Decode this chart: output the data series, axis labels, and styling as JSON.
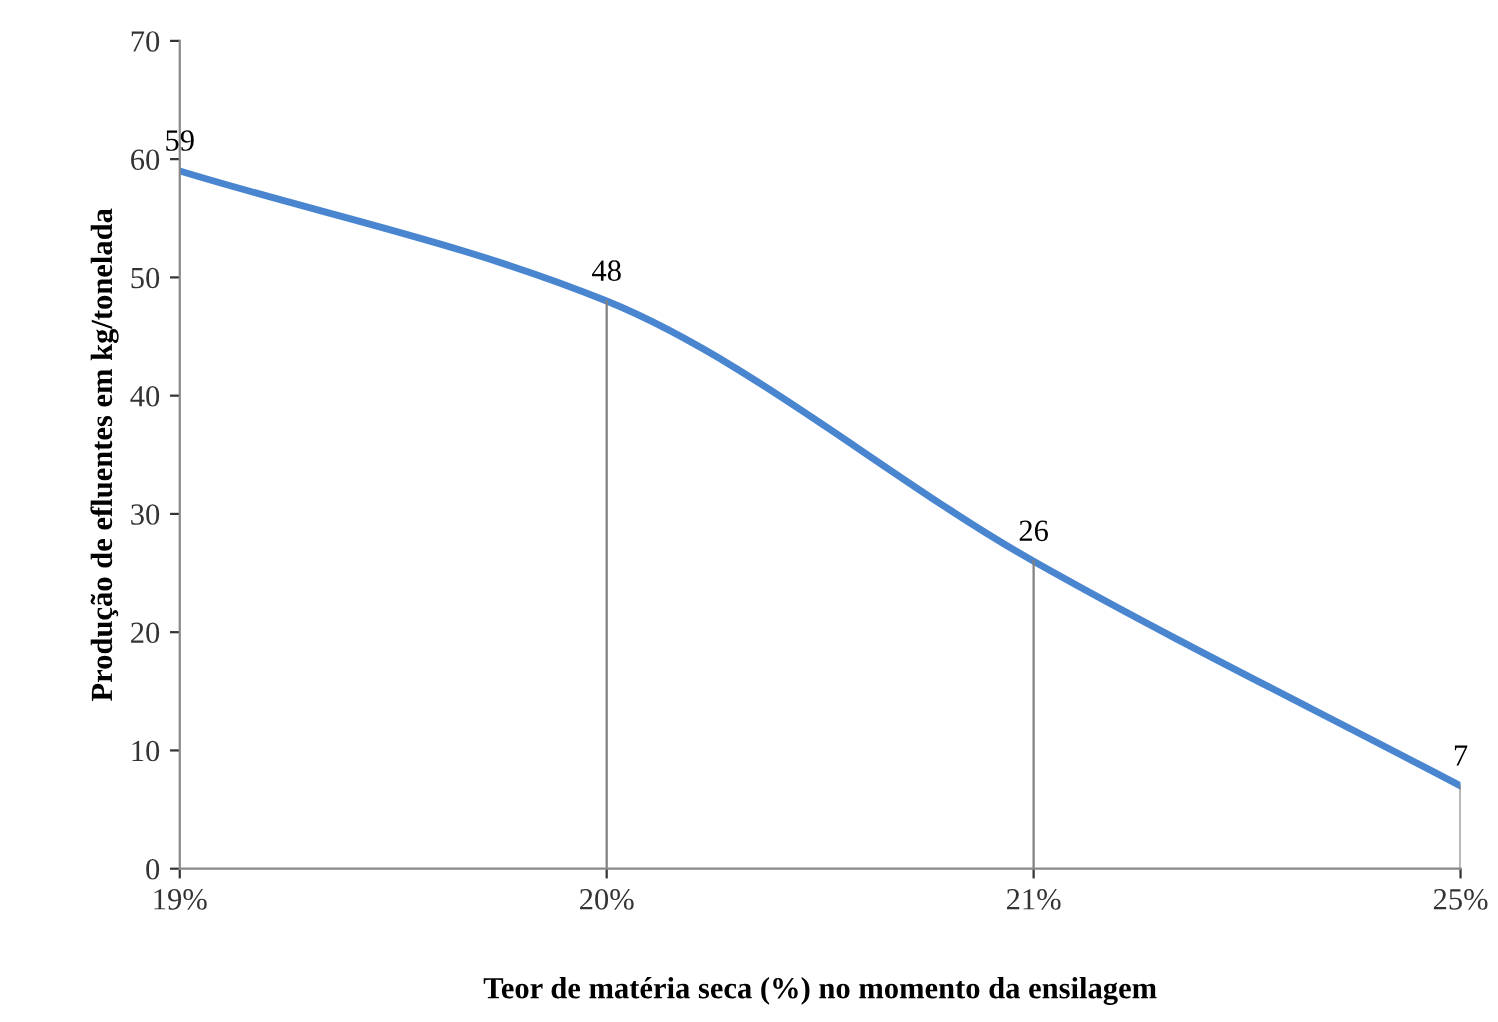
{
  "chart_data": {
    "type": "line",
    "xlabel": "Teor de matéria seca (%) no momento da ensilagem",
    "ylabel": "Produção de efluentes em kg/tonelada",
    "categories": [
      "19%",
      "20%",
      "21%",
      "25%"
    ],
    "series": [
      {
        "color": "#4a86d0",
        "values": [
          59,
          48,
          26,
          7
        ]
      }
    ],
    "ylim": [
      0,
      70
    ],
    "yticks": [
      0,
      10,
      20,
      30,
      40,
      50,
      60,
      70
    ],
    "data_labels": true,
    "grid": false,
    "legend": false,
    "marker": "none",
    "line_style": "solid",
    "ref_lines": [
      {
        "axis": "x",
        "value": "20%",
        "color": "#808080"
      },
      {
        "axis": "x",
        "value": "21%",
        "color": "#808080"
      },
      {
        "axis": "x",
        "value": "25%",
        "color": "#808080"
      }
    ]
  }
}
